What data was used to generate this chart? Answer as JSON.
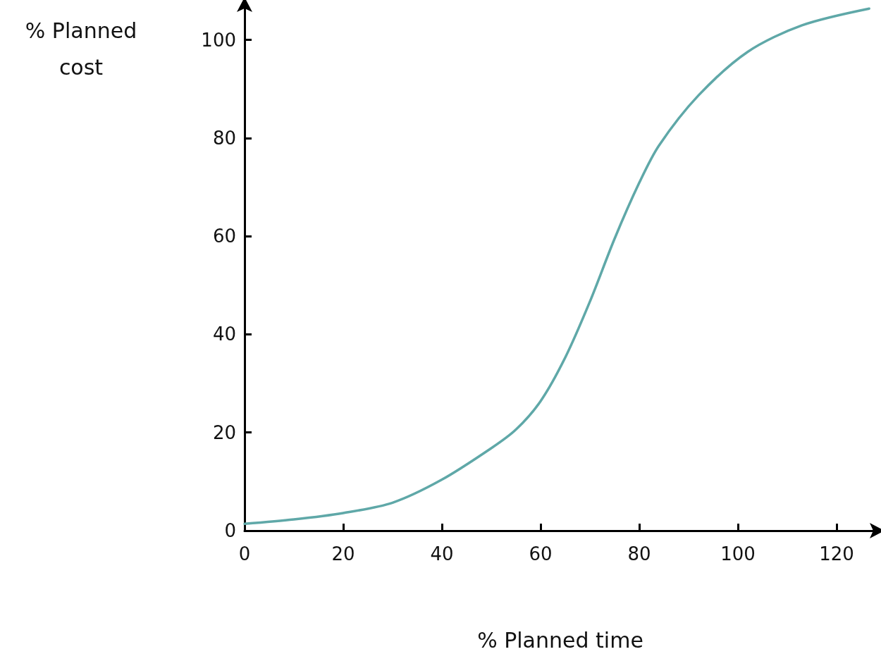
{
  "chart_data": {
    "type": "line",
    "xlabel": "% Planned time",
    "ylabel": "% Planned cost",
    "x": [
      0,
      10,
      20,
      30,
      40,
      50,
      55,
      60,
      65,
      70,
      75,
      80,
      84,
      92,
      102,
      113,
      126.6
    ],
    "series": [
      {
        "color": "#5fa8a8",
        "values": [
          1.4,
          2.3,
          3.6,
          5.7,
          10.4,
          16.8,
          20.6,
          26.4,
          35.3,
          46.7,
          59.5,
          70.9,
          78.5,
          88.7,
          97.6,
          103,
          106.4
        ]
      }
    ],
    "xlim": [
      0,
      128
    ],
    "xticks": [
      0,
      20,
      40,
      60,
      80,
      100,
      120
    ],
    "ylim": [
      0,
      107
    ],
    "yticks": [
      0,
      20,
      40,
      60,
      80,
      100
    ],
    "grid": false,
    "marker": "none",
    "line_style": "solid"
  }
}
